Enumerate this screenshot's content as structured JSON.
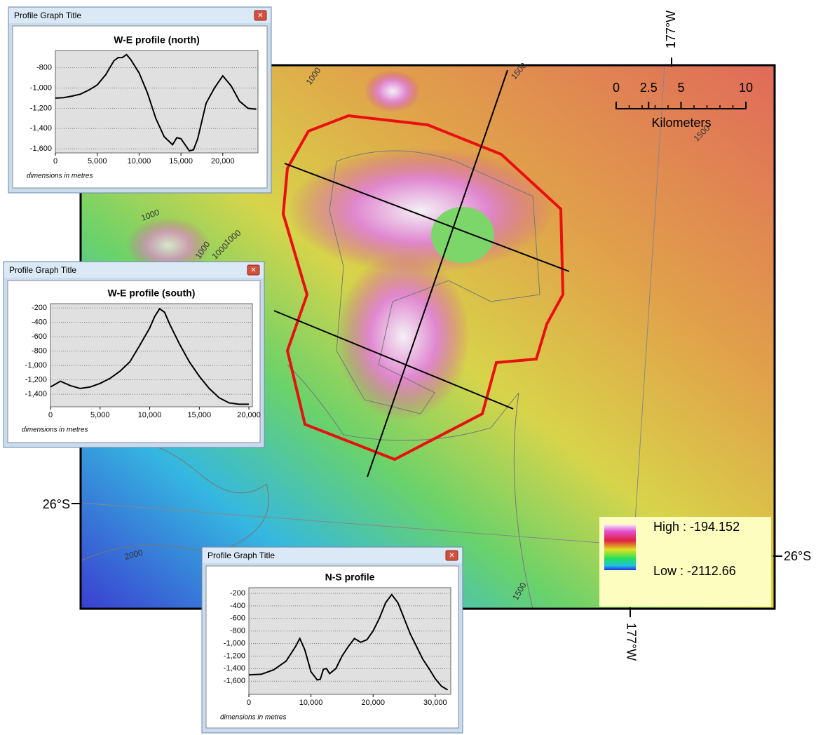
{
  "map": {
    "graticule_labels": [
      "177°W",
      "177°W",
      "26°S",
      "26°S"
    ],
    "scale_bar": {
      "ticks": [
        0,
        2.5,
        5,
        10
      ],
      "unit": "Kilometers"
    },
    "legend": {
      "high": "High : -194.152",
      "low": "Low : -2112.66"
    },
    "contour_labels": [
      "1000",
      "1500",
      "1000",
      "1000",
      "1000",
      "1000",
      "2000",
      "1500",
      "1500"
    ]
  },
  "chart_data": [
    {
      "type": "line",
      "window_title": "Profile Graph Title",
      "title": "W-E profile (north)",
      "x_label": "dimensions in metres",
      "x": [
        0,
        1000,
        2000,
        3000,
        4000,
        5000,
        6000,
        7000,
        7500,
        8000,
        8500,
        9000,
        10000,
        11000,
        12000,
        13000,
        14000,
        14500,
        15000,
        16000,
        16500,
        17000,
        18000,
        19000,
        20000,
        21000,
        22000,
        23000,
        24000
      ],
      "values": [
        -1100,
        -1095,
        -1080,
        -1060,
        -1020,
        -970,
        -870,
        -730,
        -700,
        -700,
        -670,
        -720,
        -850,
        -1050,
        -1300,
        -1480,
        -1560,
        -1490,
        -1500,
        -1620,
        -1610,
        -1500,
        -1150,
        -1000,
        -880,
        -980,
        -1130,
        -1200,
        -1210
      ],
      "color": "#000000",
      "grid": true,
      "xlim": [
        0,
        24200
      ],
      "ylim": [
        -1640,
        -630
      ],
      "xticks": [
        0,
        {
          "value": 5000,
          "label": "5,000"
        },
        {
          "value": 10000,
          "label": "10,000"
        },
        {
          "value": 15000,
          "label": "15,000"
        },
        {
          "value": 20000,
          "label": "20,000"
        }
      ],
      "yticks": [
        -800,
        {
          "value": -1000,
          "label": "-1,000"
        },
        {
          "value": -1200,
          "label": "-1,200"
        },
        {
          "value": -1400,
          "label": "-1,400"
        },
        {
          "value": -1600,
          "label": "-1,600"
        }
      ]
    },
    {
      "type": "line",
      "window_title": "Profile Graph Title",
      "title": "W-E profile (south)",
      "x_label": "dimensions in metres",
      "x": [
        0,
        1000,
        2000,
        3000,
        4000,
        5000,
        6000,
        7000,
        8000,
        9000,
        10000,
        10500,
        11000,
        11500,
        12000,
        13000,
        14000,
        15000,
        16000,
        17000,
        18000,
        19000,
        20000
      ],
      "values": [
        -1300,
        -1220,
        -1280,
        -1320,
        -1300,
        -1250,
        -1180,
        -1080,
        -950,
        -720,
        -480,
        -320,
        -210,
        -260,
        -420,
        -700,
        -950,
        -1150,
        -1320,
        -1450,
        -1520,
        -1540,
        -1540
      ],
      "color": "#000000",
      "grid": true,
      "xlim": [
        0,
        20350
      ],
      "ylim": [
        -1575,
        -140
      ],
      "xticks": [
        0,
        {
          "value": 5000,
          "label": "5,000"
        },
        {
          "value": 10000,
          "label": "10,000"
        },
        {
          "value": 15000,
          "label": "15,000"
        },
        {
          "value": 20000,
          "label": "20,000"
        }
      ],
      "yticks": [
        -200,
        -400,
        -600,
        -800,
        {
          "value": -1000,
          "label": "-1,000"
        },
        {
          "value": -1200,
          "label": "-1,200"
        },
        {
          "value": -1400,
          "label": "-1,400"
        }
      ]
    },
    {
      "type": "line",
      "window_title": "Profile Graph Title",
      "title": "N-S profile",
      "x_label": "dimensions in metres",
      "x": [
        0,
        2000,
        4000,
        6000,
        7500,
        8200,
        9000,
        10000,
        11000,
        11500,
        12000,
        12500,
        13000,
        14000,
        15000,
        16000,
        17000,
        18000,
        19000,
        20000,
        21000,
        22000,
        23000,
        24000,
        25000,
        26000,
        27000,
        28000,
        29000,
        30000,
        31000,
        32000
      ],
      "values": [
        -1500,
        -1490,
        -1420,
        -1280,
        -1050,
        -920,
        -1100,
        -1450,
        -1580,
        -1570,
        -1410,
        -1400,
        -1480,
        -1400,
        -1200,
        -1050,
        -920,
        -980,
        -940,
        -800,
        -600,
        -350,
        -220,
        -350,
        -600,
        -850,
        -1050,
        -1250,
        -1400,
        -1560,
        -1680,
        -1740
      ],
      "color": "#000000",
      "grid": true,
      "xlim": [
        0,
        32500
      ],
      "ylim": [
        -1810,
        -110
      ],
      "xticks": [
        0,
        {
          "value": 10000,
          "label": "10,000"
        },
        {
          "value": 20000,
          "label": "20,000"
        },
        {
          "value": 30000,
          "label": "30,000"
        }
      ],
      "yticks": [
        -200,
        -400,
        -600,
        -800,
        {
          "value": -1000,
          "label": "-1,000"
        },
        {
          "value": -1200,
          "label": "-1,200"
        },
        {
          "value": -1400,
          "label": "-1,400"
        },
        {
          "value": -1600,
          "label": "-1,600"
        }
      ]
    }
  ]
}
